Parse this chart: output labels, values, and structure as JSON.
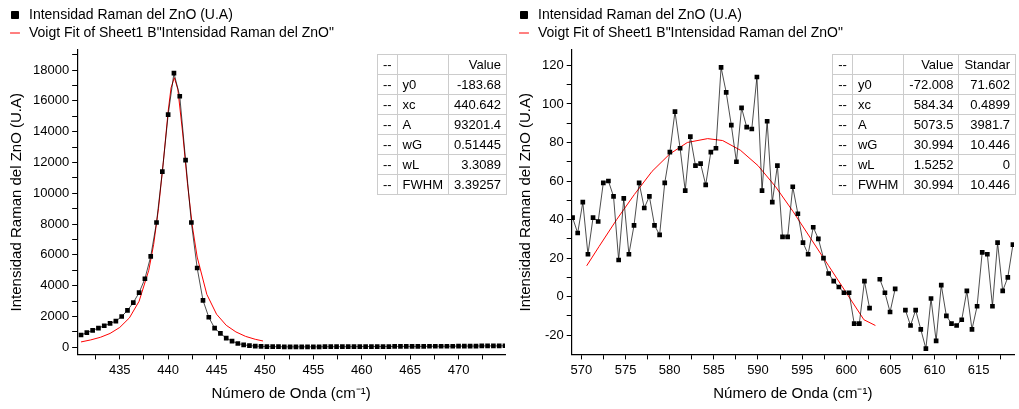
{
  "chart_data": [
    {
      "type": "line",
      "xlabel": "Número de Onda (cm⁻¹)",
      "ylabel": "Intensidad Raman del ZnO (U.A)",
      "legend": "top",
      "grid": false,
      "marker": "square",
      "xlim": [
        430.6,
        474.8
      ],
      "ylim": [
        -460,
        19300
      ],
      "xticks": [
        {
          "value": 432.5,
          "label": null
        },
        435,
        {
          "value": 437.5,
          "label": null
        },
        440,
        {
          "value": 442.5,
          "label": null
        },
        445,
        {
          "value": 447.5,
          "label": null
        },
        450,
        {
          "value": 452.5,
          "label": null
        },
        455,
        {
          "value": 457.5,
          "label": null
        },
        460,
        {
          "value": 462.5,
          "label": null
        },
        465,
        {
          "value": 467.5,
          "label": null
        },
        470,
        {
          "value": 472.5,
          "label": null
        }
      ],
      "yticks": [
        0,
        {
          "value": 1000,
          "label": null
        },
        2000,
        {
          "value": 3000,
          "label": null
        },
        4000,
        {
          "value": 5000,
          "label": null
        },
        6000,
        {
          "value": 7000,
          "label": null
        },
        8000,
        {
          "value": 9000,
          "label": null
        },
        10000,
        {
          "value": 11000,
          "label": null
        },
        12000,
        {
          "value": 13000,
          "label": null
        },
        14000,
        {
          "value": 15000,
          "label": null
        },
        16000,
        {
          "value": 17000,
          "label": null
        },
        18000,
        {
          "value": 19000,
          "label": null
        }
      ],
      "series": [
        {
          "name": "Intensidad Raman del ZnO (U.A)",
          "color": "#000000",
          "x": [
            431.0,
            431.6,
            432.2,
            432.8,
            433.4,
            434.0,
            434.6,
            435.2,
            435.8,
            436.4,
            437.0,
            437.6,
            438.2,
            438.8,
            439.4,
            440.0,
            440.6,
            441.2,
            441.8,
            442.4,
            443.0,
            443.6,
            444.2,
            444.8,
            445.4,
            446.0,
            446.6,
            447.2,
            447.8,
            448.4,
            449.0,
            449.6,
            450.2,
            450.8,
            451.4,
            452.0,
            452.6,
            453.2,
            453.8,
            454.4,
            455.0,
            455.6,
            456.2,
            456.8,
            457.4,
            458.0,
            458.6,
            459.2,
            459.8,
            460.4,
            461.0,
            461.6,
            462.2,
            462.8,
            463.4,
            464.0,
            464.6,
            465.2,
            465.8,
            466.4,
            467.0,
            467.6,
            468.2,
            468.8,
            469.4,
            470.0,
            470.6,
            471.2,
            471.8,
            472.4,
            473.0,
            473.6,
            474.2,
            474.8
          ],
          "values": [
            800,
            950,
            1100,
            1250,
            1400,
            1550,
            1700,
            2000,
            2400,
            2900,
            3550,
            4450,
            5900,
            8100,
            11400,
            15100,
            17800,
            16300,
            12150,
            8100,
            5150,
            3050,
            1950,
            1250,
            900,
            600,
            400,
            250,
            160,
            110,
            80,
            60,
            50,
            40,
            40,
            30,
            30,
            30,
            30,
            30,
            30,
            30,
            40,
            40,
            40,
            40,
            40,
            40,
            50,
            50,
            50,
            50,
            50,
            50,
            60,
            60,
            60,
            60,
            60,
            60,
            70,
            70,
            70,
            70,
            70,
            80,
            80,
            80,
            80,
            90,
            90,
            90,
            90,
            100
          ]
        },
        {
          "name": "Voigt Fit of Sheet1 B\"Intensidad Raman del ZnO\"",
          "color": "#ff0000",
          "marker": "none",
          "x": [
            431,
            432,
            433,
            434,
            435,
            436,
            437,
            438,
            438.5,
            439,
            439.5,
            440,
            440.3,
            440.64,
            441,
            441.5,
            442,
            442.5,
            443,
            444,
            445,
            446,
            447,
            448,
            449,
            449.8
          ],
          "values": [
            350,
            480,
            650,
            900,
            1290,
            1910,
            2990,
            5000,
            6660,
            8990,
            12020,
            15320,
            16840,
            17500,
            16760,
            13910,
            10610,
            7870,
            5860,
            3430,
            2150,
            1430,
            1000,
            710,
            520,
            410
          ]
        }
      ],
      "annotations": [
        "--\t\tValue",
        "--\ty0\t-183.68",
        "--\txc\t440.642",
        "--\tA\t93201.4",
        "--\twG\t0.51445",
        "--\twL\t3.3089",
        "--\tFWHM\t3.39257"
      ]
    },
    {
      "type": "line",
      "xlabel": "Número de Onda (cm⁻¹)",
      "ylabel": "Intensidad Raman del ZnO (U.A)",
      "legend": "top",
      "grid": false,
      "marker": "square",
      "xlim": [
        568.9,
        619.0
      ],
      "ylim": [
        -30,
        128
      ],
      "xticks": [
        570,
        {
          "value": 572.5,
          "label": null
        },
        575,
        {
          "value": 577.5,
          "label": null
        },
        580,
        {
          "value": 582.5,
          "label": null
        },
        585,
        {
          "value": 587.5,
          "label": null
        },
        590,
        {
          "value": 592.5,
          "label": null
        },
        595,
        {
          "value": 597.5,
          "label": null
        },
        600,
        {
          "value": 602.5,
          "label": null
        },
        605,
        {
          "value": 607.5,
          "label": null
        },
        610,
        {
          "value": 612.5,
          "label": null
        },
        615,
        {
          "value": 617.5,
          "label": null
        }
      ],
      "yticks": [
        -20,
        {
          "value": -10,
          "label": null
        },
        0,
        {
          "value": 10,
          "label": null
        },
        20,
        {
          "value": 30,
          "label": null
        },
        40,
        {
          "value": 50,
          "label": null
        },
        60,
        {
          "value": 70,
          "label": null
        },
        80,
        {
          "value": 90,
          "label": null
        },
        100,
        {
          "value": 110,
          "label": null
        },
        120
      ],
      "series": [
        {
          "name": "Intensidad Raman del ZnO (U.A)",
          "color": "#000000",
          "x": [
            569.0,
            569.58,
            570.16,
            570.74,
            571.32,
            571.9,
            572.48,
            573.06,
            573.64,
            574.22,
            574.8,
            575.38,
            575.96,
            576.54,
            577.12,
            577.7,
            578.28,
            578.86,
            579.44,
            580.02,
            580.6,
            581.18,
            581.76,
            582.34,
            582.92,
            583.5,
            584.08,
            584.66,
            585.24,
            585.82,
            586.4,
            586.98,
            587.56,
            588.14,
            588.72,
            589.3,
            589.88,
            590.46,
            591.04,
            591.62,
            592.2,
            592.78,
            593.36,
            593.94,
            594.52,
            595.1,
            595.68,
            596.26,
            596.84,
            597.42,
            598.0,
            598.58,
            599.16,
            599.74,
            600.32,
            600.9,
            601.48,
            602.06,
            602.64,
            603.22,
            603.8,
            604.38,
            604.96,
            605.54,
            606.12,
            606.7,
            607.28,
            607.86,
            608.44,
            609.02,
            609.6,
            610.18,
            610.76,
            611.34,
            611.92,
            612.5,
            613.08,
            613.66,
            614.24,
            614.82,
            615.4,
            615.98,
            616.56,
            617.14,
            617.72,
            618.3,
            618.88
          ],
          "values": [
            41,
            33,
            49,
            22,
            41,
            39,
            59,
            60,
            52,
            19,
            51,
            22,
            37,
            59,
            46,
            52,
            37,
            32,
            59,
            75,
            96,
            77,
            55,
            83,
            68,
            69,
            58,
            75,
            77,
            119,
            106,
            89,
            70,
            98,
            88,
            87,
            114,
            55,
            91,
            49,
            68,
            31,
            31,
            57,
            43,
            28,
            22,
            36,
            30,
            20,
            12,
            8,
            5,
            2,
            2,
            -14,
            -14,
            8,
            -6,
            null,
            9,
            2,
            -8,
            4,
            null,
            -7,
            -15,
            -7,
            -17,
            -27,
            -1,
            -23,
            6,
            -10,
            -14,
            -15,
            -12,
            3,
            -17,
            -5,
            23,
            22,
            -5,
            28,
            3,
            10,
            27
          ]
        },
        {
          "name": "Voigt Fit of Sheet1 B\"Intensidad Raman del ZnO\"",
          "color": "#ff0000",
          "marker": "none",
          "x": [
            570.6,
            572,
            574,
            576,
            578,
            580,
            582,
            584.3,
            586,
            588,
            590,
            592,
            594,
            596,
            598,
            600,
            602,
            603.3
          ],
          "values": [
            16,
            26,
            40,
            53,
            65,
            74,
            80,
            82,
            81,
            76,
            68,
            57,
            44,
            30,
            16,
            2,
            -12,
            -15
          ]
        }
      ],
      "annotations": [
        "--\t\tValue\tStandar",
        "--\ty0\t-72.008\t71.602",
        "--\txc\t584.34\t0.4899",
        "--\tA\t5073.5\t3981.7",
        "--\twG\t30.994\t10.446",
        "--\twL\t1.5252\t0",
        "--\tFWHM\t30.994\t10.446"
      ]
    }
  ]
}
